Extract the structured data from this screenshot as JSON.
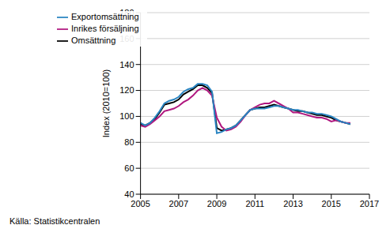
{
  "chart_data": {
    "type": "line",
    "y_label": "Index (2010=100)",
    "source": "Källa: Statistikcentralen",
    "x": [
      2005,
      2005.25,
      2005.5,
      2005.75,
      2006,
      2006.25,
      2006.5,
      2006.75,
      2007,
      2007.25,
      2007.5,
      2007.75,
      2008,
      2008.25,
      2008.5,
      2008.75,
      2009,
      2009.25,
      2009.5,
      2009.75,
      2010,
      2010.25,
      2010.5,
      2010.75,
      2011,
      2011.25,
      2011.5,
      2011.75,
      2012,
      2012.25,
      2012.5,
      2012.75,
      2013,
      2013.25,
      2013.5,
      2013.75,
      2014,
      2014.25,
      2014.5,
      2014.75,
      2015,
      2015.25,
      2015.5,
      2015.75,
      2016
    ],
    "series": [
      {
        "name": "Omsättning",
        "color": "#000000",
        "values": [
          94,
          93,
          95,
          98,
          103,
          109,
          110,
          111,
          113,
          117,
          119,
          121,
          124,
          124,
          122,
          118,
          91,
          89,
          90,
          91,
          93,
          97,
          101,
          105,
          106,
          107,
          107,
          108,
          109,
          108,
          107,
          106,
          105,
          104,
          104,
          103,
          102,
          101,
          101,
          100,
          99,
          97,
          96,
          95,
          94
        ]
      },
      {
        "name": "Inrikes försäljning",
        "color": "#b0177f",
        "values": [
          93,
          92,
          94,
          97,
          100,
          104,
          105,
          106,
          108,
          111,
          113,
          116,
          120,
          122,
          120,
          116,
          99,
          92,
          89,
          90,
          92,
          96,
          101,
          105,
          107,
          109,
          110,
          110,
          112,
          110,
          108,
          106,
          103,
          103,
          102,
          101,
          100,
          99,
          99,
          98,
          96,
          97,
          96,
          95,
          95
        ]
      },
      {
        "name": "Exportomsättning",
        "color": "#2a85c2",
        "values": [
          95,
          93,
          95,
          99,
          104,
          110,
          112,
          113,
          115,
          119,
          121,
          122,
          125,
          125,
          124,
          119,
          87,
          88,
          90,
          91,
          93,
          97,
          101,
          105,
          106,
          106,
          106,
          107,
          108,
          108,
          107,
          106,
          105,
          105,
          104,
          103,
          103,
          102,
          102,
          101,
          100,
          98,
          96,
          95,
          94
        ]
      }
    ],
    "xlim": [
      2005,
      2017
    ],
    "xticks": [
      2005,
      2007,
      2009,
      2011,
      2013,
      2015,
      2017
    ],
    "ylim": [
      40,
      180
    ],
    "yticks": [
      40,
      60,
      80,
      100,
      120,
      140,
      160,
      180
    ],
    "grid": true,
    "legend": "upper left"
  }
}
